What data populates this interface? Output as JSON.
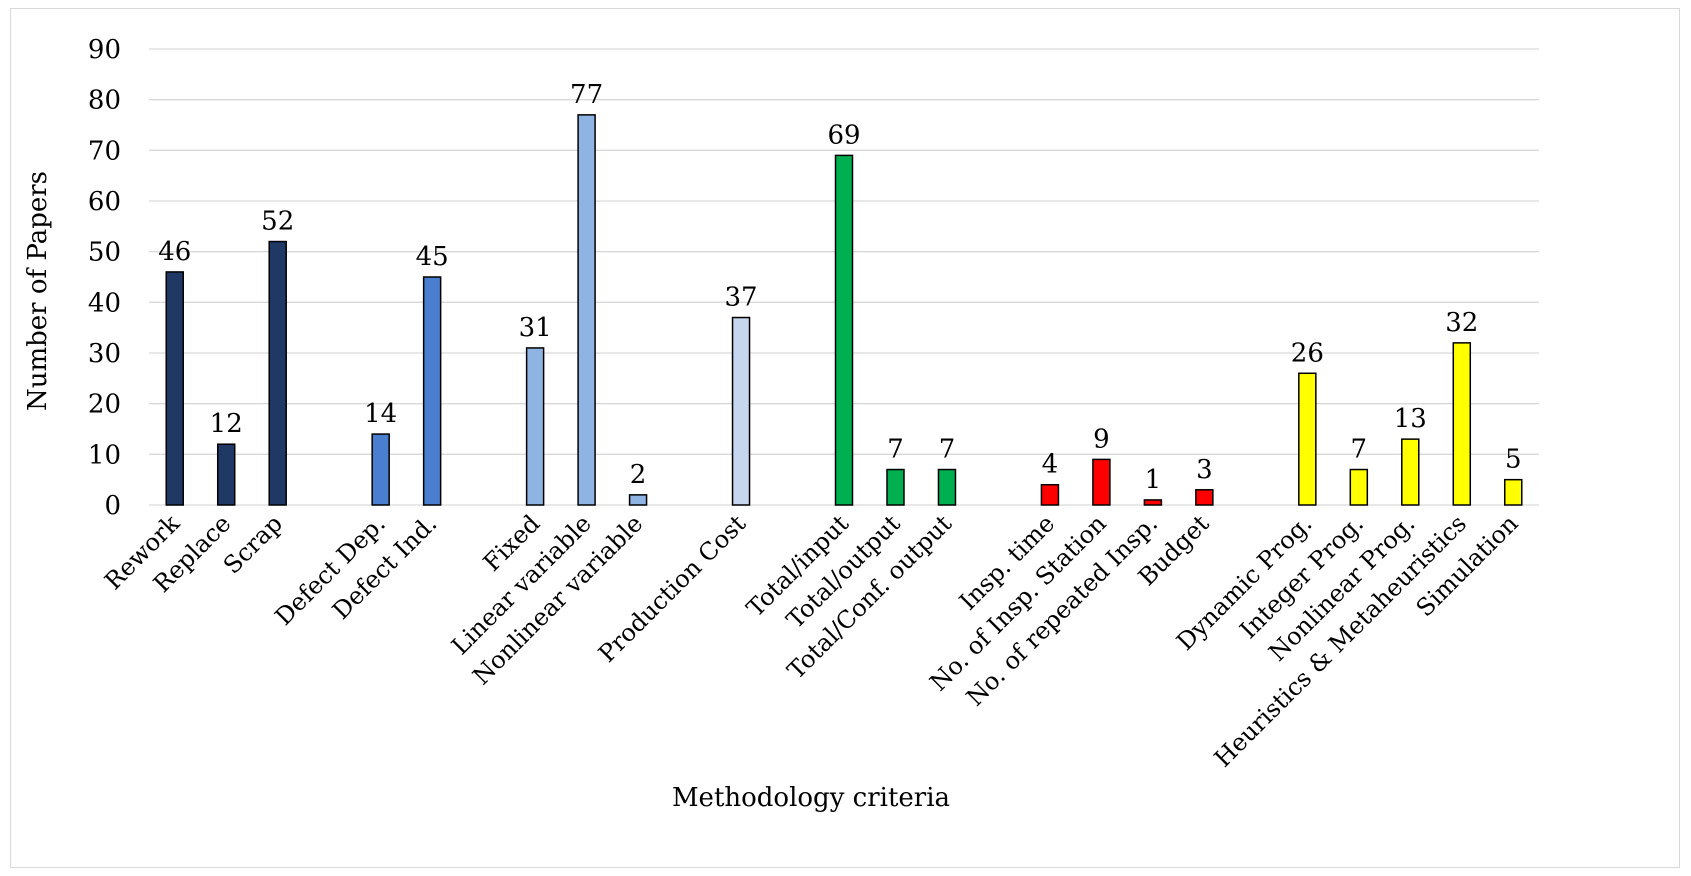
{
  "chart_data": {
    "type": "bar",
    "title": "",
    "xlabel": "Methodology criteria",
    "ylabel": "Number of Papers",
    "ylim": [
      0,
      90
    ],
    "yticks": [
      0,
      10,
      20,
      30,
      40,
      50,
      60,
      70,
      80,
      90
    ],
    "grid": true,
    "legend": "none",
    "categories": [
      "Rework",
      "Replace",
      "Scrap",
      "",
      "Defect Dep.",
      "Defect Ind.",
      "",
      "Fixed",
      "Linear variable",
      "Nonlinear variable",
      "",
      "Production Cost",
      "",
      "Total/input",
      "Total/output",
      "Total/Conf. output",
      "",
      "Insp. time",
      "No. of Insp. Station",
      "No. of repeated Insp.",
      "Budget",
      "",
      "Dynamic Prog.",
      "Integer Prog.",
      "Nonlinear Prog.",
      "Heuristics & Metaheuristics",
      "Simulation"
    ],
    "values": [
      46,
      12,
      52,
      null,
      14,
      45,
      null,
      31,
      77,
      2,
      null,
      37,
      null,
      69,
      7,
      7,
      null,
      4,
      9,
      1,
      3,
      null,
      26,
      7,
      13,
      32,
      5
    ],
    "colors": [
      "#1f3864",
      "#1f3864",
      "#1f3864",
      "",
      "#4a7ecf",
      "#4a7ecf",
      "",
      "#8eb4e3",
      "#8eb4e3",
      "#8eb4e3",
      "",
      "#c5d6ee",
      "",
      "#00b050",
      "#00b050",
      "#00b050",
      "",
      "#ff0000",
      "#ff0000",
      "#ff0000",
      "#ff0000",
      "",
      "#ffff00",
      "#ffff00",
      "#ffff00",
      "#ffff00",
      "#ffff00"
    ]
  }
}
